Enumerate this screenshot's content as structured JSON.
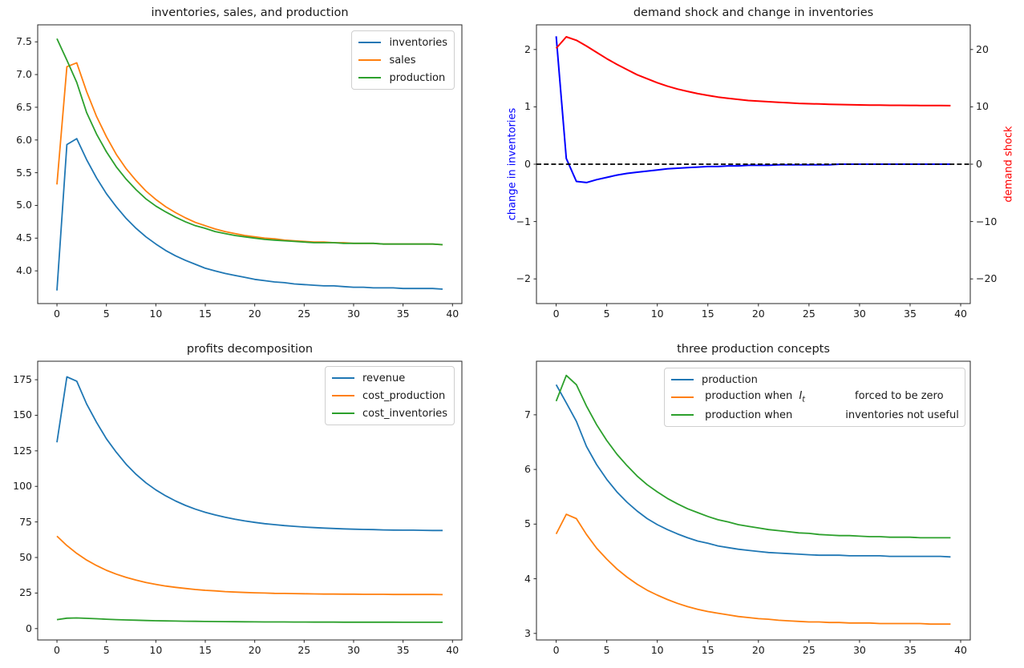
{
  "app": {
    "type": "matplotlib-figure",
    "background": "#ffffff"
  },
  "palette": {
    "mpl_blue": "#1f77b4",
    "mpl_orange": "#ff7f0e",
    "mpl_green": "#2ca02c",
    "pure_blue": "#0000ff",
    "pure_red": "#ff0000",
    "black": "#000000"
  },
  "chart_data": [
    {
      "id": "inventories-sales-production",
      "type": "line",
      "title": "inventories, sales, and production",
      "xlabel": "",
      "ylabel": "",
      "xlim": [
        -1.95,
        40.95
      ],
      "ylim": [
        3.5,
        7.76
      ],
      "grid": false,
      "x": [
        0,
        1,
        2,
        3,
        4,
        5,
        6,
        7,
        8,
        9,
        10,
        11,
        12,
        13,
        14,
        15,
        16,
        17,
        18,
        19,
        20,
        21,
        22,
        23,
        24,
        25,
        26,
        27,
        28,
        29,
        30,
        31,
        32,
        33,
        34,
        35,
        36,
        37,
        38,
        39
      ],
      "xticks": {
        "values": [
          0,
          5,
          10,
          15,
          20,
          25,
          30,
          35,
          40
        ],
        "labels": [
          "0",
          "5",
          "10",
          "15",
          "20",
          "25",
          "30",
          "35",
          "40"
        ]
      },
      "yticks": {
        "values": [
          4.0,
          4.5,
          5.0,
          5.5,
          6.0,
          6.5,
          7.0,
          7.5
        ],
        "labels": [
          "4.0",
          "4.5",
          "5.0",
          "5.5",
          "6.0",
          "6.5",
          "7.0",
          "7.5"
        ]
      },
      "series": [
        {
          "name": "inventories",
          "color": "#1f77b4",
          "axis": "left",
          "values": [
            3.7,
            5.93,
            6.02,
            5.7,
            5.42,
            5.18,
            4.98,
            4.8,
            4.65,
            4.52,
            4.41,
            4.31,
            4.23,
            4.16,
            4.1,
            4.04,
            4.0,
            3.96,
            3.93,
            3.9,
            3.87,
            3.85,
            3.83,
            3.82,
            3.8,
            3.79,
            3.78,
            3.77,
            3.77,
            3.76,
            3.75,
            3.75,
            3.74,
            3.74,
            3.74,
            3.73,
            3.73,
            3.73,
            3.73,
            3.72
          ]
        },
        {
          "name": "sales",
          "color": "#ff7f0e",
          "axis": "left",
          "values": [
            5.32,
            7.12,
            7.18,
            6.74,
            6.36,
            6.05,
            5.78,
            5.56,
            5.38,
            5.22,
            5.09,
            4.98,
            4.89,
            4.81,
            4.74,
            4.69,
            4.64,
            4.6,
            4.57,
            4.54,
            4.52,
            4.5,
            4.49,
            4.47,
            4.46,
            4.45,
            4.44,
            4.44,
            4.43,
            4.43,
            4.42,
            4.42,
            4.42,
            4.41,
            4.41,
            4.41,
            4.41,
            4.41,
            4.41,
            4.4
          ]
        },
        {
          "name": "production",
          "color": "#2ca02c",
          "axis": "left",
          "values": [
            7.55,
            7.22,
            6.88,
            6.42,
            6.09,
            5.82,
            5.59,
            5.4,
            5.24,
            5.1,
            4.99,
            4.9,
            4.82,
            4.75,
            4.69,
            4.65,
            4.6,
            4.57,
            4.54,
            4.52,
            4.5,
            4.48,
            4.47,
            4.46,
            4.45,
            4.44,
            4.43,
            4.43,
            4.43,
            4.42,
            4.42,
            4.42,
            4.42,
            4.41,
            4.41,
            4.41,
            4.41,
            4.41,
            4.41,
            4.4
          ]
        }
      ],
      "legend": {
        "position": "upper right",
        "items": [
          {
            "label": "inventories",
            "color": "#1f77b4"
          },
          {
            "label": "sales",
            "color": "#ff7f0e"
          },
          {
            "label": "production",
            "color": "#2ca02c"
          }
        ]
      }
    },
    {
      "id": "demand-shock-and-change-in-inventories",
      "type": "line",
      "title": "demand shock and change in inventories",
      "xlim": [
        -1.95,
        40.95
      ],
      "ylim": [
        -2.43,
        2.43
      ],
      "ylim_right": [
        -24.3,
        24.3
      ],
      "grid": false,
      "ylabel_left": {
        "text": "change in inventories",
        "color": "#0000ff"
      },
      "ylabel_right": {
        "text": "demand shock",
        "color": "#ff0000"
      },
      "x": [
        0,
        1,
        2,
        3,
        4,
        5,
        6,
        7,
        8,
        9,
        10,
        11,
        12,
        13,
        14,
        15,
        16,
        17,
        18,
        19,
        20,
        21,
        22,
        23,
        24,
        25,
        26,
        27,
        28,
        29,
        30,
        31,
        32,
        33,
        34,
        35,
        36,
        37,
        38,
        39
      ],
      "xticks": {
        "values": [
          0,
          5,
          10,
          15,
          20,
          25,
          30,
          35,
          40
        ],
        "labels": [
          "0",
          "5",
          "10",
          "15",
          "20",
          "25",
          "30",
          "35",
          "40"
        ]
      },
      "yticks": {
        "values": [
          -2,
          -1,
          0,
          1,
          2
        ],
        "labels": [
          "−2",
          "−1",
          "0",
          "1",
          "2"
        ]
      },
      "yticks_right": {
        "values": [
          -20,
          -10,
          0,
          10,
          20
        ],
        "labels": [
          "−20",
          "−10",
          "0",
          "10",
          "20"
        ]
      },
      "series": [
        {
          "name": "change in inventories",
          "color": "#0000ff",
          "axis": "left",
          "width": 2,
          "values": [
            2.23,
            0.1,
            -0.3,
            -0.32,
            -0.27,
            -0.23,
            -0.19,
            -0.16,
            -0.14,
            -0.12,
            -0.1,
            -0.08,
            -0.07,
            -0.06,
            -0.05,
            -0.04,
            -0.04,
            -0.03,
            -0.03,
            -0.02,
            -0.02,
            -0.02,
            -0.01,
            -0.01,
            -0.01,
            -0.01,
            -0.01,
            -0.01,
            0,
            0,
            0,
            0,
            0,
            0,
            0,
            0,
            0,
            0,
            0,
            0
          ]
        },
        {
          "name": "zero line",
          "color": "#000000",
          "axis": "left",
          "dashed": true,
          "full_width": true,
          "constant": 0,
          "width": 1.8,
          "values": [
            0,
            0
          ]
        },
        {
          "name": "demand shock",
          "color": "#ff0000",
          "axis": "right",
          "width": 2,
          "values": [
            20.2,
            22.2,
            21.6,
            20.6,
            19.5,
            18.4,
            17.4,
            16.5,
            15.6,
            14.9,
            14.2,
            13.6,
            13.1,
            12.7,
            12.3,
            12.0,
            11.7,
            11.5,
            11.3,
            11.1,
            11.0,
            10.9,
            10.8,
            10.7,
            10.6,
            10.55,
            10.5,
            10.45,
            10.4,
            10.37,
            10.34,
            10.31,
            10.29,
            10.27,
            10.26,
            10.25,
            10.24,
            10.23,
            10.22,
            10.21
          ]
        }
      ],
      "legend": null
    },
    {
      "id": "profits-decomposition",
      "type": "line",
      "title": "profits decomposition",
      "xlim": [
        -1.95,
        40.95
      ],
      "ylim": [
        -8,
        188
      ],
      "grid": false,
      "x": [
        0,
        1,
        2,
        3,
        4,
        5,
        6,
        7,
        8,
        9,
        10,
        11,
        12,
        13,
        14,
        15,
        16,
        17,
        18,
        19,
        20,
        21,
        22,
        23,
        24,
        25,
        26,
        27,
        28,
        29,
        30,
        31,
        32,
        33,
        34,
        35,
        36,
        37,
        38,
        39
      ],
      "xticks": {
        "values": [
          0,
          5,
          10,
          15,
          20,
          25,
          30,
          35,
          40
        ],
        "labels": [
          "0",
          "5",
          "10",
          "15",
          "20",
          "25",
          "30",
          "35",
          "40"
        ]
      },
      "yticks": {
        "values": [
          0,
          25,
          50,
          75,
          100,
          125,
          150,
          175
        ],
        "labels": [
          "0",
          "25",
          "50",
          "75",
          "100",
          "125",
          "150",
          "175"
        ]
      },
      "series": [
        {
          "name": "revenue",
          "color": "#1f77b4",
          "axis": "left",
          "values": [
            131,
            177,
            174,
            158,
            145,
            133.5,
            124,
            115.5,
            108.5,
            102.5,
            97.5,
            93.3,
            89.7,
            86.6,
            84.0,
            81.8,
            79.9,
            78.3,
            76.9,
            75.7,
            74.7,
            73.8,
            73.1,
            72.4,
            71.9,
            71.4,
            71.0,
            70.7,
            70.4,
            70.1,
            69.9,
            69.7,
            69.6,
            69.4,
            69.3,
            69.2,
            69.2,
            69.1,
            69.0,
            69.0
          ]
        },
        {
          "name": "cost_production",
          "color": "#ff7f0e",
          "axis": "left",
          "values": [
            65,
            58.4,
            52.9,
            48.2,
            44.3,
            41.0,
            38.3,
            36.0,
            34.1,
            32.4,
            31.1,
            29.9,
            29.0,
            28.2,
            27.5,
            26.9,
            26.5,
            26.0,
            25.7,
            25.4,
            25.2,
            25.0,
            24.8,
            24.7,
            24.6,
            24.5,
            24.4,
            24.3,
            24.3,
            24.2,
            24.2,
            24.1,
            24.1,
            24.1,
            24.0,
            24.0,
            24.0,
            24.0,
            24.0,
            23.9
          ]
        },
        {
          "name": "cost_inventories",
          "color": "#2ca02c",
          "axis": "left",
          "values": [
            6.3,
            7.3,
            7.5,
            7.2,
            6.9,
            6.6,
            6.3,
            6.1,
            5.9,
            5.7,
            5.5,
            5.4,
            5.3,
            5.2,
            5.1,
            5.0,
            4.95,
            4.9,
            4.85,
            4.8,
            4.75,
            4.7,
            4.68,
            4.65,
            4.62,
            4.6,
            4.58,
            4.56,
            4.55,
            4.53,
            4.52,
            4.5,
            4.5,
            4.49,
            4.48,
            4.47,
            4.46,
            4.45,
            4.45,
            4.44
          ]
        }
      ],
      "legend": {
        "position": "upper right",
        "items": [
          {
            "label": "revenue",
            "color": "#1f77b4"
          },
          {
            "label": "cost_production",
            "color": "#ff7f0e"
          },
          {
            "label": "cost_inventories",
            "color": "#2ca02c"
          }
        ]
      }
    },
    {
      "id": "three-production-concepts",
      "type": "line",
      "title": "three production concepts",
      "xlim": [
        -1.95,
        40.95
      ],
      "ylim": [
        2.88,
        7.98
      ],
      "grid": false,
      "x": [
        0,
        1,
        2,
        3,
        4,
        5,
        6,
        7,
        8,
        9,
        10,
        11,
        12,
        13,
        14,
        15,
        16,
        17,
        18,
        19,
        20,
        21,
        22,
        23,
        24,
        25,
        26,
        27,
        28,
        29,
        30,
        31,
        32,
        33,
        34,
        35,
        36,
        37,
        38,
        39
      ],
      "xticks": {
        "values": [
          0,
          5,
          10,
          15,
          20,
          25,
          30,
          35,
          40
        ],
        "labels": [
          "0",
          "5",
          "10",
          "15",
          "20",
          "25",
          "30",
          "35",
          "40"
        ]
      },
      "yticks": {
        "values": [
          3,
          4,
          5,
          6,
          7
        ],
        "labels": [
          "3",
          "4",
          "5",
          "6",
          "7"
        ]
      },
      "series": [
        {
          "name": "production",
          "color": "#1f77b4",
          "axis": "left",
          "values": [
            7.55,
            7.22,
            6.88,
            6.42,
            6.09,
            5.82,
            5.59,
            5.4,
            5.24,
            5.1,
            4.99,
            4.9,
            4.82,
            4.75,
            4.69,
            4.65,
            4.6,
            4.57,
            4.54,
            4.52,
            4.5,
            4.48,
            4.47,
            4.46,
            4.45,
            4.44,
            4.43,
            4.43,
            4.43,
            4.42,
            4.42,
            4.42,
            4.42,
            4.41,
            4.41,
            4.41,
            4.41,
            4.41,
            4.41,
            4.4
          ]
        },
        {
          "name": "production when It forced to be zero",
          "color": "#ff7f0e",
          "axis": "left",
          "values": [
            4.82,
            5.18,
            5.1,
            4.81,
            4.56,
            4.36,
            4.18,
            4.03,
            3.9,
            3.79,
            3.7,
            3.62,
            3.55,
            3.49,
            3.44,
            3.4,
            3.37,
            3.34,
            3.31,
            3.29,
            3.27,
            3.26,
            3.24,
            3.23,
            3.22,
            3.21,
            3.21,
            3.2,
            3.2,
            3.19,
            3.19,
            3.19,
            3.18,
            3.18,
            3.18,
            3.18,
            3.18,
            3.17,
            3.17,
            3.17
          ]
        },
        {
          "name": "production when inventories not useful",
          "color": "#2ca02c",
          "axis": "left",
          "values": [
            7.25,
            7.72,
            7.55,
            7.16,
            6.82,
            6.53,
            6.28,
            6.07,
            5.88,
            5.72,
            5.59,
            5.47,
            5.37,
            5.28,
            5.21,
            5.14,
            5.08,
            5.04,
            4.99,
            4.96,
            4.93,
            4.9,
            4.88,
            4.86,
            4.84,
            4.83,
            4.81,
            4.8,
            4.79,
            4.79,
            4.78,
            4.77,
            4.77,
            4.76,
            4.76,
            4.76,
            4.75,
            4.75,
            4.75,
            4.75
          ]
        }
      ],
      "legend": {
        "position": "upper right wide",
        "items": [
          {
            "label": "production",
            "color": "#1f77b4"
          },
          {
            "label": " production when  $I_t$               forced to be zero",
            "color": "#ff7f0e"
          },
          {
            "label": " production when                inventories not useful",
            "color": "#2ca02c"
          }
        ]
      }
    }
  ]
}
